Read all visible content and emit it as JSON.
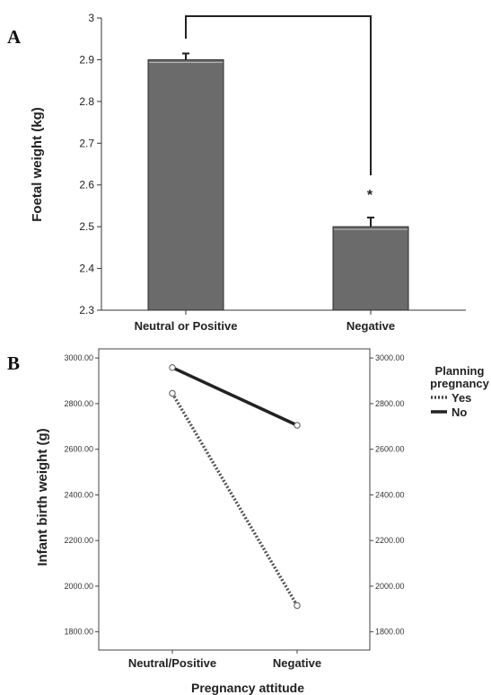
{
  "chart_data": [
    {
      "panel": "A",
      "type": "bar",
      "categories": [
        "Neutral or Positive",
        "Negative"
      ],
      "values": [
        2.9,
        2.5
      ],
      "error": [
        0.015,
        0.022
      ],
      "ylabel": "Foetal weight (kg)",
      "yticks": [
        "2.3",
        "2.4",
        "2.5",
        "2.6",
        "2.7",
        "2.8",
        "2.9",
        "3"
      ],
      "ylim": [
        2.3,
        3.0
      ],
      "annotation": "*",
      "bar_color": "#6b6b6b",
      "grid": false
    },
    {
      "panel": "B",
      "type": "line",
      "categories": [
        "Neutral/Positive",
        "Negative"
      ],
      "series": [
        {
          "name": "Yes",
          "values": [
            2845,
            1915
          ],
          "style": "dotted"
        },
        {
          "name": "No",
          "values": [
            2958,
            2705
          ],
          "style": "solid"
        }
      ],
      "xlabel": "Pregnancy attitude",
      "ylabel": "Infant birth weight (g)",
      "yticks": [
        "1800.00",
        "2000.00",
        "2200.00",
        "2400.00",
        "2600.00",
        "2800.00",
        "3000.00"
      ],
      "ylim": [
        1720,
        3040
      ],
      "legend_title": "Planning pregnancy",
      "legend_title_lines": [
        "Planning",
        "pregnancy"
      ],
      "legend_entries": [
        "Yes",
        "No"
      ],
      "legend_position": "top-right",
      "grid": false
    }
  ]
}
